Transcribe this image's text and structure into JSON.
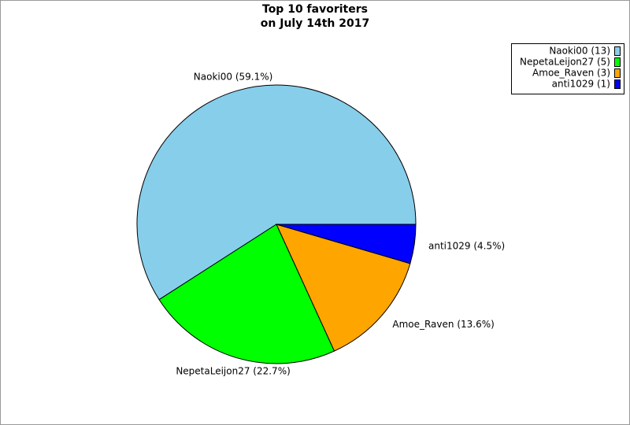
{
  "chart_data": {
    "type": "pie",
    "title": "Top 10 favoriters",
    "subtitle": "on July 14th 2017",
    "categories": [
      "Naoki00 (13)",
      "NepetaLeijon27 (5)",
      "Amoe_Raven (3)",
      "anti1029 (1)"
    ],
    "values": [
      13,
      5,
      3,
      1
    ],
    "value_labels": [
      "Naoki00 (59.1%)",
      "NepetaLeijon27 (22.7%)",
      "Amoe_Raven (13.6%)",
      "anti1029 (4.5%)"
    ],
    "colors": [
      "#87ceeb",
      "#00ff00",
      "#ffa500",
      "#0000ff"
    ],
    "legend": "top-right"
  }
}
